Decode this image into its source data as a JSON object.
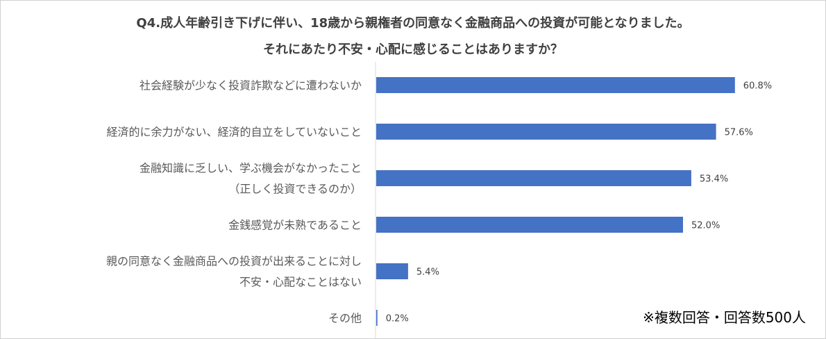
{
  "chart_data": {
    "type": "bar",
    "orientation": "horizontal",
    "title": [
      "Q4.成人年齢引き下げに伴い、18歳から親権者の同意なく金融商品への投資が可能となりました。",
      "それにあたり不安・心配に感じることはありますか？"
    ],
    "categories": [
      [
        "社会経験が少なく投資詐欺などに遭わないか"
      ],
      [
        "経済的に余力がない、経済的自立をしていないこと"
      ],
      [
        "金融知識に乏しい、学ぶ機会がなかったこと",
        "（正しく投資できるのか）"
      ],
      [
        "金銭感覚が未熟であること"
      ],
      [
        "親の同意なく金融商品への投資が出来ることに対し",
        "不安・心配なことはない"
      ],
      [
        "その他"
      ]
    ],
    "values": [
      60.8,
      57.6,
      53.4,
      52.0,
      5.4,
      0.2
    ],
    "value_labels": [
      "60.8%",
      "57.6%",
      "53.4%",
      "52.0%",
      "5.4%",
      "0.2%"
    ],
    "unit": "%",
    "grid": false,
    "legend": "none",
    "bar_color": "#4472c4"
  },
  "note": "※複数回答・回答数500人"
}
